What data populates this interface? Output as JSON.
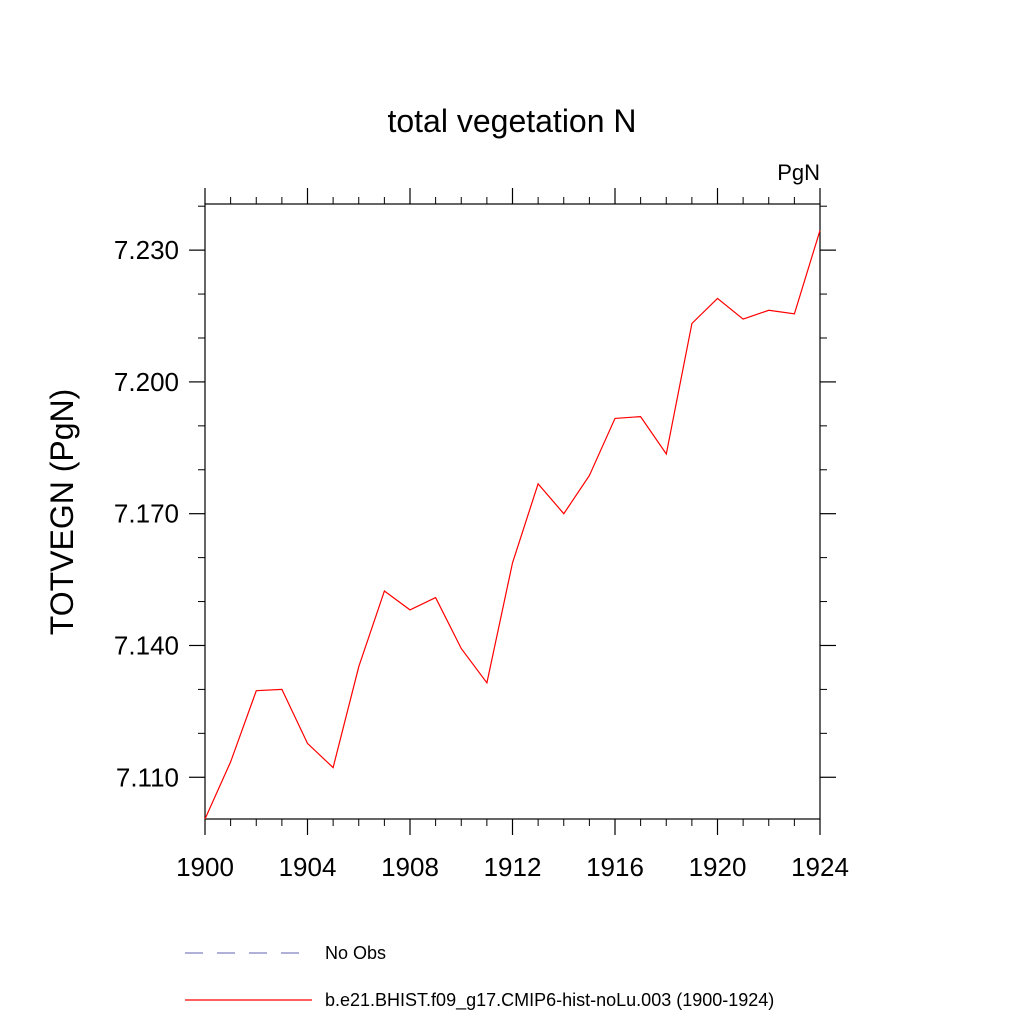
{
  "chart_data": {
    "type": "line",
    "title": "total vegetation N",
    "units": "PgN",
    "ylabel": "TOTVEGN  (PgN)",
    "xlabel": "",
    "xlim": [
      1900,
      1924
    ],
    "ylim": [
      7.1005,
      7.2405
    ],
    "xticks": [
      {
        "value": 1900,
        "label": "1900"
      },
      {
        "value": 1904,
        "label": "1904"
      },
      {
        "value": 1908,
        "label": "1908"
      },
      {
        "value": 1912,
        "label": "1912"
      },
      {
        "value": 1916,
        "label": "1916"
      },
      {
        "value": 1920,
        "label": "1920"
      },
      {
        "value": 1924,
        "label": "1924"
      }
    ],
    "yticks": [
      {
        "value": 7.11,
        "label": "7.110"
      },
      {
        "value": 7.14,
        "label": "7.140"
      },
      {
        "value": 7.17,
        "label": "7.170"
      },
      {
        "value": 7.2,
        "label": "7.200"
      },
      {
        "value": 7.23,
        "label": "7.230"
      }
    ],
    "grid": false,
    "legend_position": "bottom",
    "x": [
      1900,
      1901,
      1902,
      1903,
      1904,
      1905,
      1906,
      1907,
      1908,
      1909,
      1910,
      1911,
      1912,
      1913,
      1914,
      1915,
      1916,
      1917,
      1918,
      1919,
      1920,
      1921,
      1922,
      1923,
      1924
    ],
    "series": [
      {
        "name": "b.e21.BHIST.f09_g17.CMIP6-hist-noLu.003 (1900-1924)",
        "color": "#ff0000",
        "dash": "solid",
        "values": [
          7.1005,
          7.1135,
          7.1297,
          7.13,
          7.1177,
          7.1122,
          7.1352,
          7.1524,
          7.1481,
          7.1509,
          7.1393,
          7.1315,
          7.1588,
          7.1768,
          7.17,
          7.1787,
          7.1917,
          7.1921,
          7.1836,
          7.2133,
          7.219,
          7.2143,
          7.2163,
          7.2155,
          7.2345
        ]
      }
    ],
    "legend": [
      {
        "label": "No Obs",
        "color": "#8080c0",
        "dash": "dashed"
      },
      {
        "label": "b.e21.BHIST.f09_g17.CMIP6-hist-noLu.003 (1900-1924)",
        "color": "#ff0000",
        "dash": "solid"
      }
    ]
  }
}
